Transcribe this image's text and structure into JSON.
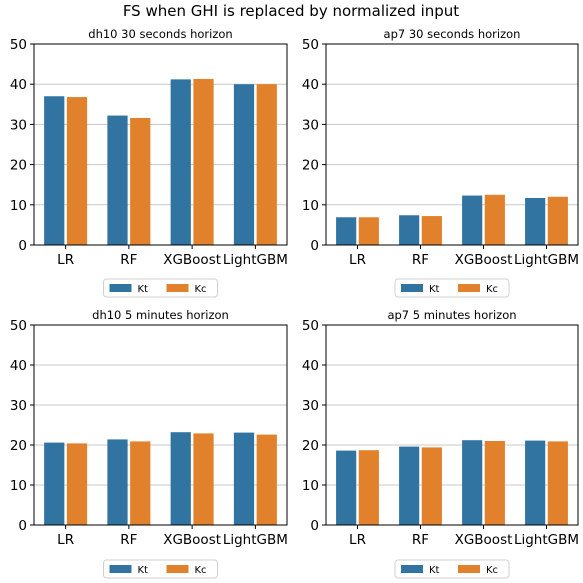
{
  "figure_title": "FS when GHI is replaced by normalized input",
  "colors": {
    "Kt": "#3274a1",
    "Kc": "#e1812c"
  },
  "chart_data": [
    {
      "type": "bar",
      "title": "dh10 30 seconds horizon",
      "categories": [
        "LR",
        "RF",
        "XGBoost",
        "LightGBM"
      ],
      "ylim": [
        0,
        50
      ],
      "yticks": [
        0,
        10,
        20,
        30,
        40,
        50
      ],
      "grid": "horizontal",
      "legend_position": "below",
      "series": [
        {
          "name": "Kt",
          "values": [
            37.0,
            32.2,
            41.2,
            40.0
          ]
        },
        {
          "name": "Kc",
          "values": [
            36.8,
            31.6,
            41.3,
            40.0
          ]
        }
      ]
    },
    {
      "type": "bar",
      "title": "ap7 30 seconds horizon",
      "categories": [
        "LR",
        "RF",
        "XGBoost",
        "LightGBM"
      ],
      "ylim": [
        0,
        50
      ],
      "yticks": [
        0,
        10,
        20,
        30,
        40,
        50
      ],
      "grid": "horizontal",
      "legend_position": "below",
      "series": [
        {
          "name": "Kt",
          "values": [
            6.9,
            7.4,
            12.3,
            11.7
          ]
        },
        {
          "name": "Kc",
          "values": [
            6.9,
            7.2,
            12.5,
            12.0
          ]
        }
      ]
    },
    {
      "type": "bar",
      "title": "dh10 5 minutes horizon",
      "categories": [
        "LR",
        "RF",
        "XGBoost",
        "LightGBM"
      ],
      "ylim": [
        0,
        50
      ],
      "yticks": [
        0,
        10,
        20,
        30,
        40,
        50
      ],
      "grid": "horizontal",
      "legend_position": "below",
      "series": [
        {
          "name": "Kt",
          "values": [
            20.6,
            21.4,
            23.2,
            23.1
          ]
        },
        {
          "name": "Kc",
          "values": [
            20.4,
            20.9,
            22.9,
            22.6
          ]
        }
      ]
    },
    {
      "type": "bar",
      "title": "ap7 5 minutes horizon",
      "categories": [
        "LR",
        "RF",
        "XGBoost",
        "LightGBM"
      ],
      "ylim": [
        0,
        50
      ],
      "yticks": [
        0,
        10,
        20,
        30,
        40,
        50
      ],
      "grid": "horizontal",
      "legend_position": "below",
      "series": [
        {
          "name": "Kt",
          "values": [
            18.6,
            19.6,
            21.2,
            21.1
          ]
        },
        {
          "name": "Kc",
          "values": [
            18.7,
            19.4,
            21.0,
            20.9
          ]
        }
      ]
    }
  ]
}
